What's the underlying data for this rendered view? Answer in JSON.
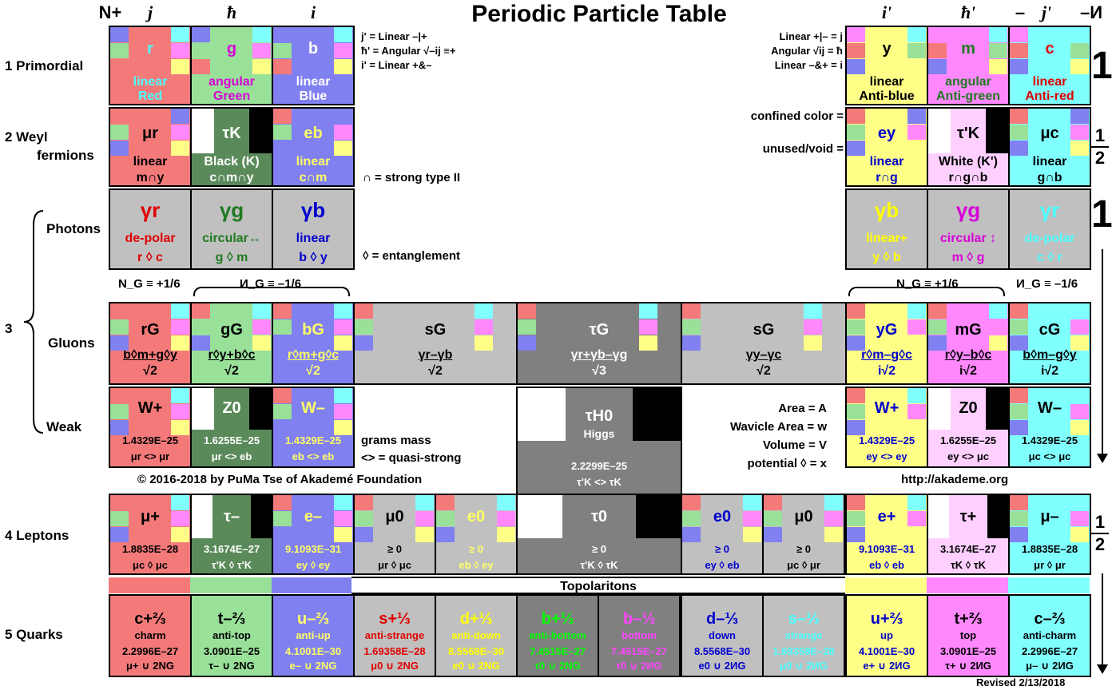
{
  "title": "Periodic Particle Table",
  "column_headers": {
    "left": [
      "N+",
      "j",
      "ħ",
      "i"
    ],
    "right": [
      "i'",
      "ħ'",
      "–",
      "j'",
      "–И"
    ]
  },
  "notes_left": [
    "j' = Linear –|+",
    "ħ' = Angular √–ij ≡+",
    "i' = Linear +&–"
  ],
  "notes_right": [
    "Linear +|– = j",
    "Angular √ij = ħ",
    "Linear –&+ = i"
  ],
  "notes_mid": {
    "strong": "∩ = strong type II",
    "entangle": "◊ = entanglement",
    "confined": "confined color =",
    "unused": "unused/void =",
    "grams": "grams mass",
    "quasi": "<> = quasi-strong",
    "copyright": "© 2016-2018 by PuMa Tse of Akademé Foundation",
    "url": "http://akademe.org",
    "legend": [
      "Area = A",
      "Wavicle Area = w",
      "Volume = V",
      "potential ◊ = x"
    ],
    "revised": "Revised 2/13/2018"
  },
  "row_labels": {
    "r1": "1  Primordial",
    "r2a": "2  Weyl",
    "r2b": "fermions",
    "photons": "Photons",
    "r3": "3",
    "gluons": "Gluons",
    "weak": "Weak",
    "r4": "4  Leptons",
    "r5": "5  Quarks"
  },
  "side_numbers": {
    "one_top": "1",
    "half_top_num": "1",
    "half_top_den": "2",
    "one_mid": "1",
    "half_bot_num": "1",
    "half_bot_den": "2"
  },
  "group_labels": {
    "ng_left": "N_G ≡ +1/6",
    "ig_left": "И_G ≡ –1/6",
    "ng_right": "N_G ≡ +1/6",
    "ig_right": "И_G ≡ –1/6"
  },
  "topolaritons": "Topolaritons",
  "colors": {
    "red": "#f47a7a",
    "green": "#99e099",
    "blue": "#8080f0",
    "yellow": "#ffff88",
    "magenta": "#ff88ff",
    "cyan": "#80ffff",
    "grey": "#c0c0c0",
    "darkgrey": "#808080",
    "darkgreen": "#5a8a5a"
  },
  "primordial": [
    {
      "sym": "r",
      "l1": "linear",
      "l2": "Red"
    },
    {
      "sym": "g",
      "l1": "angular",
      "l2": "Green"
    },
    {
      "sym": "b",
      "l1": "linear",
      "l2": "Blue"
    },
    {
      "sym": "y",
      "l1": "linear",
      "l2": "Anti-blue"
    },
    {
      "sym": "m",
      "l1": "angular",
      "l2": "Anti-green"
    },
    {
      "sym": "c",
      "l1": "linear",
      "l2": "Anti-red"
    }
  ],
  "weyl": [
    {
      "sym": "μr",
      "l1": "linear",
      "l2": "m∩y"
    },
    {
      "sym": "τK",
      "l1": "Black (K)",
      "l2": "c∩m∩y"
    },
    {
      "sym": "eb",
      "l1": "linear",
      "l2": "c∩m"
    },
    {
      "sym": "ey",
      "l1": "linear",
      "l2": "r∩g"
    },
    {
      "sym": "τ'K",
      "l1": "White (K')",
      "l2": "r∩g∩b"
    },
    {
      "sym": "μc",
      "l1": "linear",
      "l2": "g∩b"
    }
  ],
  "photons": [
    {
      "sym": "γr",
      "l1": "de-polar",
      "l2": "r ◊ c"
    },
    {
      "sym": "γg",
      "l1": "circular↔",
      "l2": "g ◊ m"
    },
    {
      "sym": "γb",
      "l1": "linear",
      "l2": "b ◊ y"
    },
    {
      "sym": "γb",
      "l1": "linear+",
      "l2": "y ◊ b"
    },
    {
      "sym": "γg",
      "l1": "circular ↕",
      "l2": "m ◊ g"
    },
    {
      "sym": "γr",
      "l1": "de-polar",
      "l2": "c ◊ r"
    }
  ],
  "gluons": [
    {
      "sym": "rG",
      "l1": "b◊m+g◊y",
      "l2": "√2"
    },
    {
      "sym": "gG",
      "l1": "r◊y+b◊c",
      "l2": "√2"
    },
    {
      "sym": "bG",
      "l1": "r◊m+g◊c",
      "l2": "√2"
    },
    {
      "sym": "sG",
      "l1": "γr–γb",
      "l2": "√2"
    },
    {
      "sym": "τG",
      "l1": "γr+γb–γg",
      "l2": "√3"
    },
    {
      "sym": "sG",
      "l1": "γy–γc",
      "l2": "√2"
    },
    {
      "sym": "yG",
      "l1": "r◊m–g◊c",
      "l2": "i√2"
    },
    {
      "sym": "mG",
      "l1": "r◊y–b◊c",
      "l2": "i√2"
    },
    {
      "sym": "cG",
      "l1": "b◊m–g◊y",
      "l2": "i√2"
    }
  ],
  "weak": [
    {
      "sym": "W+",
      "num": "1.4329E–25",
      "l3": "μr <> μr"
    },
    {
      "sym": "Z0",
      "num": "1.6255E–25",
      "l3": "μr <> eb"
    },
    {
      "sym": "W–",
      "num": "1.4329E–25",
      "l3": "eb <> eb"
    },
    {
      "sym": "τH0",
      "sub": "Higgs",
      "num": "2.2299E–25",
      "l3": "τ'K <> τK"
    },
    {
      "sym": "W+",
      "num": "1.4329E–25",
      "l3": "ey <> ey"
    },
    {
      "sym": "Z0",
      "num": "1.6255E–25",
      "l3": "ey <> μc"
    },
    {
      "sym": "W–",
      "num": "1.4329E–25",
      "l3": "μc <> μc"
    }
  ],
  "leptons": [
    {
      "sym": "μ+",
      "num": "1.8835E–28",
      "l3": "μc ◊ μc"
    },
    {
      "sym": "τ–",
      "num": "3.1674E–27",
      "l3": "τ'K ◊ τ'K"
    },
    {
      "sym": "e–",
      "num": "9.1093E–31",
      "l3": "ey ◊ ey"
    },
    {
      "sym": "μ0",
      "num": "≥ 0",
      "l3": "μr ◊ μc"
    },
    {
      "sym": "e0",
      "num": "≥ 0",
      "l3": "eb ◊ ey"
    },
    {
      "sym": "τ0",
      "num": "≥ 0",
      "l3": "τ'K ◊ τK"
    },
    {
      "sym": "e0",
      "num": "≥ 0",
      "l3": "ey ◊ eb"
    },
    {
      "sym": "μ0",
      "num": "≥ 0",
      "l3": "μc ◊ μr"
    },
    {
      "sym": "e+",
      "num": "9.1093E–31",
      "l3": "eb ◊ eb"
    },
    {
      "sym": "τ+",
      "num": "3.1674E–27",
      "l3": "τK ◊ τK"
    },
    {
      "sym": "μ–",
      "num": "1.8835E–28",
      "l3": "μr ◊ μr"
    }
  ],
  "quarks": [
    {
      "sym": "c+⅔",
      "l1": "charm",
      "num": "2.2996E–27",
      "l3": "μ+ ∪ 2NG"
    },
    {
      "sym": "t–⅔",
      "l1": "anti-top",
      "num": "3.0901E–25",
      "l3": "τ– ∪ 2NG"
    },
    {
      "sym": "u–⅔",
      "l1": "anti-up",
      "num": "4.1001E–30",
      "l3": "e– ∪ 2NG"
    },
    {
      "sym": "s+⅓",
      "l1": "anti-strange",
      "num": "1.69358E–28",
      "l3": "μ0 ∪ 2NG"
    },
    {
      "sym": "d+⅓",
      "l1": "anti-down",
      "num": "8.5568E–30",
      "l3": "e0 ∪ 2NG"
    },
    {
      "sym": "b+⅓",
      "l1": "anti-bottom",
      "num": "7.4515E–27",
      "l3": "τ0 ∪ 2NG"
    },
    {
      "sym": "b–⅓",
      "l1": "bottom",
      "num": "7.4515E–27",
      "l3": "τ0 ∪ 2ИG"
    },
    {
      "sym": "d–⅓",
      "l1": "down",
      "num": "8.5568E–30",
      "l3": "e0 ∪ 2ИG"
    },
    {
      "sym": "s–⅓",
      "l1": "strange",
      "num": "1.69358E–28",
      "l3": "μ0 ∪ 2ИG"
    },
    {
      "sym": "u+⅔",
      "l1": "up",
      "num": "4.1001E–30",
      "l3": "e+ ∪ 2ИG"
    },
    {
      "sym": "t+⅔",
      "l1": "top",
      "num": "3.0901E–25",
      "l3": "τ+ ∪ 2ИG"
    },
    {
      "sym": "c–⅔",
      "l1": "anti-charm",
      "num": "2.2996E–27",
      "l3": "μ– ∪ 2ИG"
    }
  ]
}
